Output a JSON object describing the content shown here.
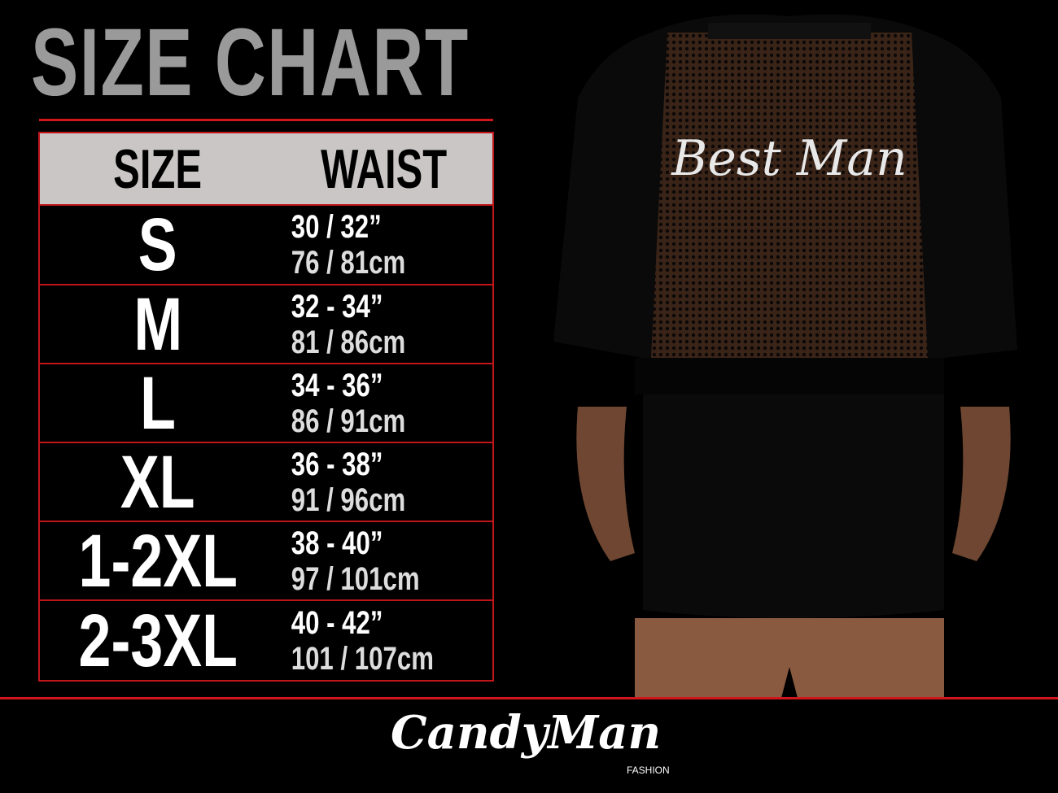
{
  "title": "SIZE CHART",
  "table": {
    "headers": [
      "SIZE",
      "WAIST"
    ],
    "rows": [
      {
        "size": "S",
        "inches": "30 / 32”",
        "cm": "76 / 81cm"
      },
      {
        "size": "M",
        "inches": "32 - 34”",
        "cm": "81 / 86cm"
      },
      {
        "size": "L",
        "inches": "34 - 36”",
        "cm": "86 / 91cm"
      },
      {
        "size": "XL",
        "inches": "36 - 38”",
        "cm": "91 / 96cm"
      },
      {
        "size": "1-2XL",
        "inches": "38 - 40”",
        "cm": "97 / 101cm"
      },
      {
        "size": "2-3XL",
        "inches": "40 - 42”",
        "cm": "101 / 107cm"
      }
    ]
  },
  "photo": {
    "garment_text": "Best Man"
  },
  "brand": {
    "name": "CandyMan",
    "sub": "FASHION"
  },
  "colors": {
    "accent": "#d0161a",
    "title": "#9a9a9a",
    "header_bg": "#cbc6c6",
    "background": "#000000"
  }
}
